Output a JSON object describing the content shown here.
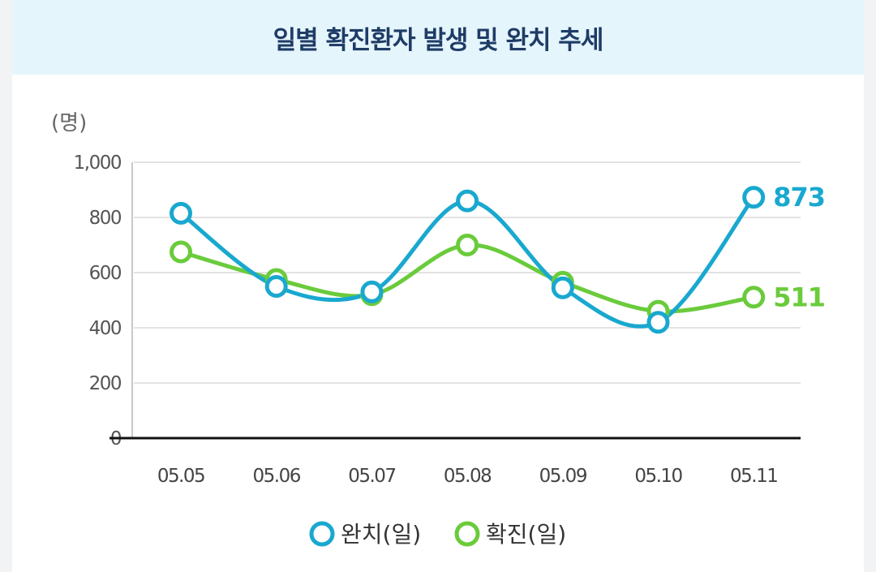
{
  "colors": {
    "recovered": "#19a8cf",
    "confirmed": "#6acb3b"
  },
  "chart_data": {
    "type": "line",
    "title": "일별 확진환자 발생 및 완치 추세",
    "ylabel": "(명)",
    "categories": [
      "05.05",
      "05.06",
      "05.07",
      "05.08",
      "05.09",
      "05.10",
      "05.11"
    ],
    "y_ticks": [
      "0",
      "200",
      "400",
      "600",
      "800",
      "1,000"
    ],
    "ylim": [
      0,
      1000
    ],
    "grid": true,
    "legend": "bottom",
    "series": [
      {
        "name": "완치(일)",
        "values": [
          815,
          550,
          530,
          860,
          545,
          420,
          873
        ],
        "end_label": "873"
      },
      {
        "name": "확진(일)",
        "values": [
          675,
          575,
          520,
          700,
          565,
          460,
          511
        ],
        "end_label": "511"
      }
    ]
  }
}
